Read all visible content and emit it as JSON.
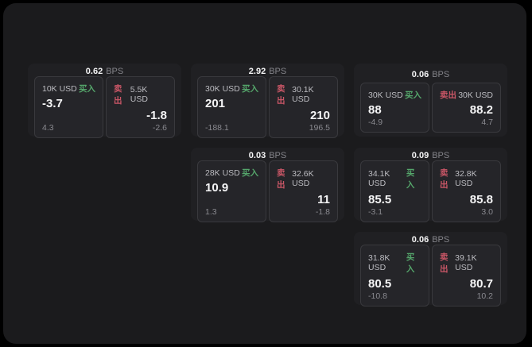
{
  "labels": {
    "bps_unit": "BPS",
    "buy": "买入",
    "sell": "卖出"
  },
  "colors": {
    "background": "#000000",
    "panel": "#1b1b1d",
    "card": "#202023",
    "tile": "#252529",
    "buy_accent": "#55a66b",
    "sell_accent": "#cb5767"
  },
  "cards": [
    {
      "bps": "0.62",
      "buy": {
        "size": "10K USD",
        "price": "-3.7",
        "delta": "4.3"
      },
      "sell": {
        "size": "5.5K USD",
        "price": "-1.8",
        "delta": "-2.6"
      }
    },
    {
      "bps": "2.92",
      "buy": {
        "size": "30K USD",
        "price": "201",
        "delta": "-188.1"
      },
      "sell": {
        "size": "30.1K USD",
        "price": "210",
        "delta": "196.5"
      }
    },
    {
      "bps": "0.06",
      "buy": {
        "size": "30K USD",
        "price": "88",
        "delta": "-4.9"
      },
      "sell": {
        "size": "30K USD",
        "price": "88.2",
        "delta": "4.7"
      }
    },
    {
      "bps": "0.03",
      "buy": {
        "size": "28K USD",
        "price": "10.9",
        "delta": "1.3"
      },
      "sell": {
        "size": "32.6K USD",
        "price": "11",
        "delta": "-1.8"
      }
    },
    {
      "bps": "0.09",
      "buy": {
        "size": "34.1K USD",
        "price": "85.5",
        "delta": "-3.1"
      },
      "sell": {
        "size": "32.8K USD",
        "price": "85.8",
        "delta": "3.0"
      }
    },
    {
      "bps": "0.06",
      "buy": {
        "size": "31.8K USD",
        "price": "80.5",
        "delta": "-10.8"
      },
      "sell": {
        "size": "39.1K USD",
        "price": "80.7",
        "delta": "10.2"
      }
    }
  ]
}
